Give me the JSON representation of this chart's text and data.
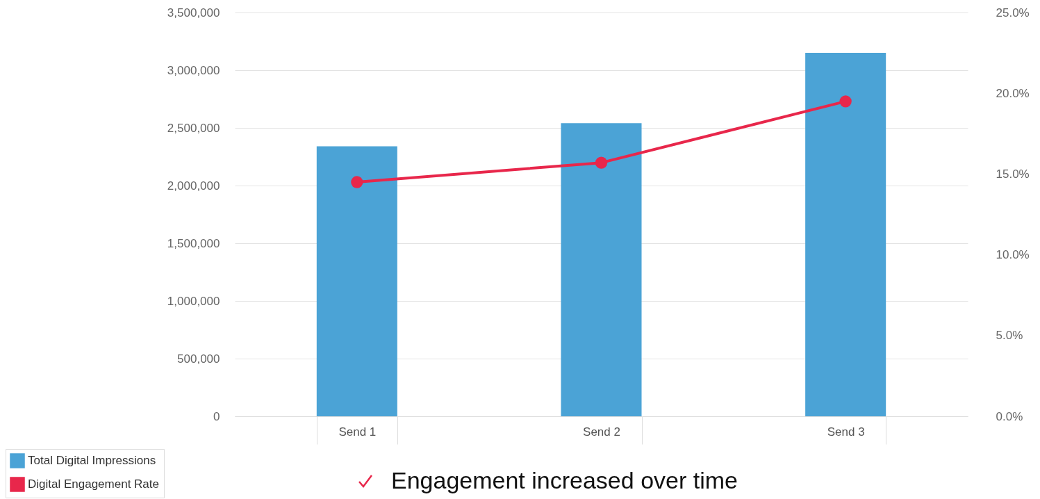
{
  "chart_data": {
    "type": "bar",
    "categories": [
      "Send 1",
      "Send 2",
      "Send 3"
    ],
    "series": [
      {
        "name": "Total Digital Impressions",
        "color": "#4ba3d6",
        "values": [
          2340000,
          2540000,
          3150000
        ]
      },
      {
        "name": "Digital Engagement Rate",
        "type": "line",
        "axis": "y2",
        "color": "#e8274b",
        "values": [
          14.5,
          15.7,
          19.5
        ]
      }
    ],
    "ylim": [
      0,
      3500000
    ],
    "yticks": [
      0,
      {
        "value": 500000,
        "label": "500,000"
      },
      {
        "value": 1000000,
        "label": "1,000,000"
      },
      {
        "value": 1500000,
        "label": "1,500,000"
      },
      {
        "value": 2000000,
        "label": "2,000,000"
      },
      {
        "value": 2500000,
        "label": "2,500,000"
      },
      {
        "value": 3000000,
        "label": "3,000,000"
      },
      {
        "value": 3500000,
        "label": "3,500,000"
      }
    ],
    "y2lim": [
      0,
      25
    ],
    "y2ticks": [
      {
        "value": 0,
        "label": "0.0%"
      },
      {
        "value": 5,
        "label": "5.0%"
      },
      {
        "value": 10,
        "label": "10.0%"
      },
      {
        "value": 15,
        "label": "15.0%"
      },
      {
        "value": 20,
        "label": "20.0%"
      },
      {
        "value": 25,
        "label": "25.0%"
      }
    ],
    "grid": "y",
    "legend": "bottom left",
    "marker": "circle",
    "annotations": [
      "Engagement increased over time"
    ]
  }
}
